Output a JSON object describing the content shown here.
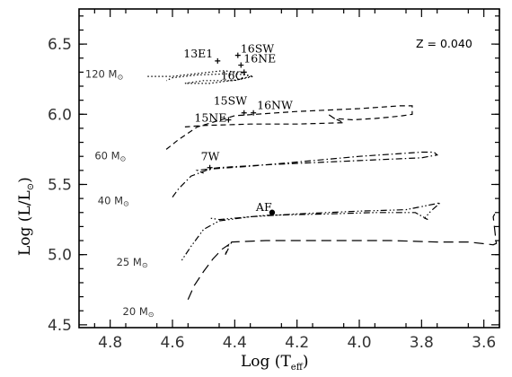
{
  "chart_data": {
    "type": "line",
    "title": "",
    "annotation": "Z = 0.040",
    "xlabel": "Log (T",
    "xlabel_sub": "eff",
    "xlabel_end": ")",
    "ylabel": "Log (L/L",
    "ylabel_sun": "⊙",
    "ylabel_end": ")",
    "x_reversed": true,
    "xlim": [
      4.9,
      3.55
    ],
    "ylim": [
      4.48,
      6.75
    ],
    "x_ticks": [
      {
        "v": 4.8,
        "label": "4.8"
      },
      {
        "v": 4.6,
        "label": "4.6"
      },
      {
        "v": 4.4,
        "label": "4.4"
      },
      {
        "v": 4.2,
        "label": "4.2"
      },
      {
        "v": 4.0,
        "label": "4.0"
      },
      {
        "v": 3.8,
        "label": "3.8"
      },
      {
        "v": 3.6,
        "label": "3.6"
      }
    ],
    "y_ticks": [
      {
        "v": 4.5,
        "label": "4.5"
      },
      {
        "v": 5.0,
        "label": "5.0"
      },
      {
        "v": 5.5,
        "label": "5.5"
      },
      {
        "v": 6.0,
        "label": "6.0"
      },
      {
        "v": 6.5,
        "label": "6.5"
      }
    ],
    "series": [
      {
        "name": "120 M",
        "dash": "1.5,2.5",
        "label_pos": [
          4.88,
          6.26
        ],
        "points": [
          [
            4.68,
            6.27
          ],
          [
            4.6,
            6.27
          ],
          [
            4.52,
            6.29
          ],
          [
            4.44,
            6.31
          ],
          [
            4.38,
            6.3
          ],
          [
            4.35,
            6.27
          ],
          [
            4.4,
            6.24
          ],
          [
            4.5,
            6.24
          ],
          [
            4.56,
            6.22
          ],
          [
            4.48,
            6.22
          ],
          [
            4.38,
            6.25
          ],
          [
            4.34,
            6.27
          ],
          [
            4.4,
            6.29
          ],
          [
            4.52,
            6.28
          ],
          [
            4.6,
            6.26
          ],
          [
            4.62,
            6.24
          ]
        ]
      },
      {
        "name": "60 M",
        "dash": "6,4",
        "label_pos": [
          4.85,
          5.68
        ],
        "points": [
          [
            4.62,
            5.75
          ],
          [
            4.58,
            5.82
          ],
          [
            4.52,
            5.91
          ],
          [
            4.4,
            5.99
          ],
          [
            4.2,
            6.02
          ],
          [
            4.0,
            6.04
          ],
          [
            3.87,
            6.06
          ],
          [
            3.83,
            6.06
          ],
          [
            3.83,
            6.0
          ],
          [
            3.86,
            5.99
          ],
          [
            3.9,
            5.98
          ],
          [
            3.95,
            5.97
          ],
          [
            4.02,
            5.96
          ],
          [
            4.08,
            5.97
          ],
          [
            4.1,
            6.0
          ],
          [
            4.08,
            5.97
          ],
          [
            4.05,
            5.94
          ],
          [
            4.2,
            5.93
          ],
          [
            4.35,
            5.93
          ],
          [
            4.5,
            5.92
          ],
          [
            4.56,
            5.91
          ]
        ]
      },
      {
        "name": "40 M",
        "dash": "7,3,1.5,3",
        "label_pos": [
          4.84,
          5.36
        ],
        "points": [
          [
            4.6,
            5.41
          ],
          [
            4.58,
            5.47
          ],
          [
            4.54,
            5.56
          ],
          [
            4.48,
            5.61
          ],
          [
            4.35,
            5.63
          ],
          [
            4.2,
            5.66
          ],
          [
            4.0,
            5.7
          ],
          [
            3.8,
            5.73
          ],
          [
            3.76,
            5.73
          ],
          [
            3.75,
            5.71
          ],
          [
            3.8,
            5.69
          ],
          [
            3.9,
            5.68
          ],
          [
            4.0,
            5.67
          ],
          [
            4.2,
            5.65
          ],
          [
            4.3,
            5.64
          ],
          [
            4.45,
            5.62
          ],
          [
            4.52,
            5.6
          ],
          [
            4.5,
            5.58
          ]
        ]
      },
      {
        "name": "25 M",
        "dash": "1.5,2.5,1.5,2.5,7,3",
        "label_pos": [
          4.78,
          4.92
        ],
        "points": [
          [
            4.57,
            4.96
          ],
          [
            4.54,
            5.06
          ],
          [
            4.5,
            5.18
          ],
          [
            4.45,
            5.24
          ],
          [
            4.35,
            5.27
          ],
          [
            4.2,
            5.29
          ],
          [
            4.0,
            5.31
          ],
          [
            3.85,
            5.32
          ],
          [
            3.76,
            5.36
          ],
          [
            3.74,
            5.37
          ],
          [
            3.77,
            5.31
          ],
          [
            3.79,
            5.26
          ],
          [
            3.78,
            5.25
          ],
          [
            3.82,
            5.3
          ],
          [
            3.95,
            5.3
          ],
          [
            4.1,
            5.29
          ],
          [
            4.3,
            5.28
          ],
          [
            4.45,
            5.25
          ],
          [
            4.48,
            5.26
          ]
        ]
      },
      {
        "name": "20 M",
        "dash": "11,6",
        "label_pos": [
          4.76,
          4.57
        ],
        "points": [
          [
            4.55,
            4.68
          ],
          [
            4.53,
            4.78
          ],
          [
            4.5,
            4.88
          ],
          [
            4.47,
            4.97
          ],
          [
            4.44,
            5.04
          ],
          [
            4.42,
            5.07
          ],
          [
            4.43,
            5.0
          ],
          [
            4.41,
            5.09
          ],
          [
            4.3,
            5.1
          ],
          [
            4.1,
            5.1
          ],
          [
            3.9,
            5.1
          ],
          [
            3.75,
            5.09
          ],
          [
            3.65,
            5.09
          ],
          [
            3.57,
            5.07
          ],
          [
            3.56,
            5.08
          ],
          [
            3.57,
            5.27
          ],
          [
            3.565,
            5.29
          ]
        ]
      }
    ],
    "mass_unit": "M",
    "mass_sun": "⊙",
    "stars": [
      {
        "label": "13E1",
        "x": 4.455,
        "y": 6.38,
        "lx": -38,
        "ly": -4,
        "marker": "plus"
      },
      {
        "label": "16SW",
        "x": 4.39,
        "y": 6.42,
        "lx": 3,
        "ly": -3,
        "marker": "plus"
      },
      {
        "label": "16NE",
        "x": 4.38,
        "y": 6.35,
        "lx": 3,
        "ly": -3,
        "marker": "plus"
      },
      {
        "label": "16C",
        "x": 4.37,
        "y": 6.3,
        "lx": -26,
        "ly": 8,
        "marker": "plus"
      },
      {
        "label": "15SW",
        "x": 4.37,
        "y": 6.01,
        "lx": -34,
        "ly": -9,
        "marker": "plus"
      },
      {
        "label": "16NW",
        "x": 4.34,
        "y": 6.01,
        "lx": 4,
        "ly": -4,
        "marker": "plus"
      },
      {
        "label": "15NE",
        "x": 4.42,
        "y": 5.96,
        "lx": -38,
        "ly": 2,
        "marker": "plus"
      },
      {
        "label": "7W",
        "x": 4.48,
        "y": 5.62,
        "lx": -10,
        "ly": -8,
        "marker": "plus"
      },
      {
        "label": "AF",
        "x": 4.28,
        "y": 5.3,
        "lx": -18,
        "ly": -2,
        "marker": "dot"
      }
    ]
  }
}
